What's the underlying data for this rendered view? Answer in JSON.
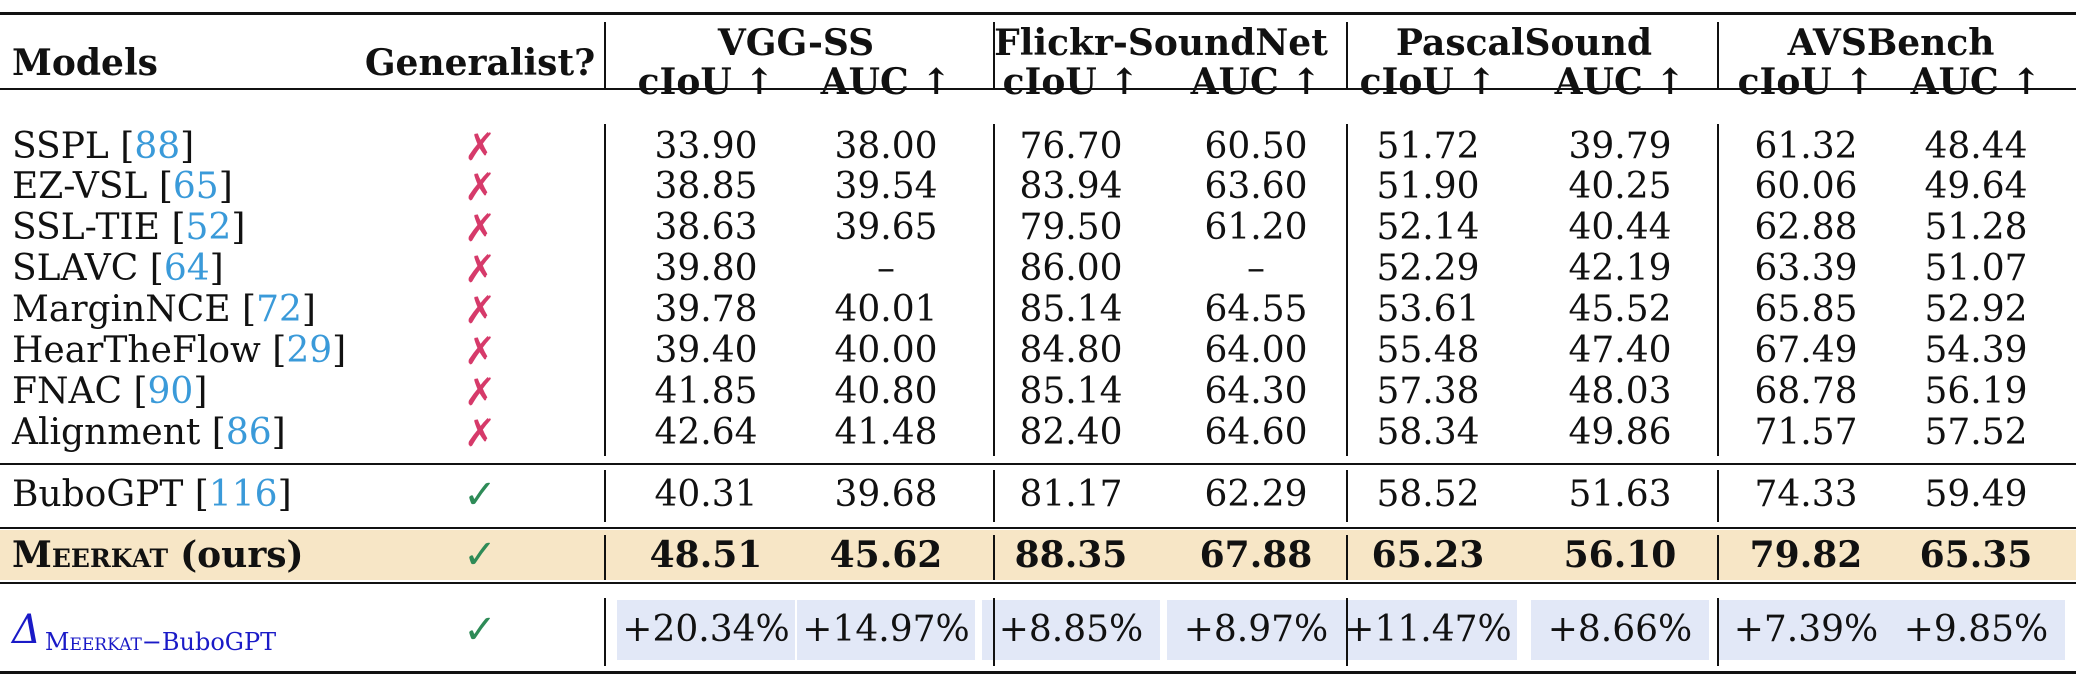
{
  "header": {
    "models": "Models",
    "generalist": "Generalist?",
    "groups": [
      "VGG-SS",
      "Flickr-SoundNet",
      "PascalSound",
      "AVSBench"
    ],
    "metrics": [
      "cIoU ↑",
      "AUC ↑",
      "cIoU ↑",
      "AUC ↑",
      "cIoU ↑",
      "AUC ↑",
      "cIoU ↑",
      "AUC ↑"
    ]
  },
  "specialists": [
    {
      "name": "SSPL",
      "ref": "88",
      "generalist": "✗",
      "values": [
        "33.90",
        "38.00",
        "76.70",
        "60.50",
        "51.72",
        "39.79",
        "61.32",
        "48.44"
      ]
    },
    {
      "name": "EZ-VSL",
      "ref": "65",
      "generalist": "✗",
      "values": [
        "38.85",
        "39.54",
        "83.94",
        "63.60",
        "51.90",
        "40.25",
        "60.06",
        "49.64"
      ]
    },
    {
      "name": "SSL-TIE",
      "ref": "52",
      "generalist": "✗",
      "values": [
        "38.63",
        "39.65",
        "79.50",
        "61.20",
        "52.14",
        "40.44",
        "62.88",
        "51.28"
      ]
    },
    {
      "name": "SLAVC",
      "ref": "64",
      "generalist": "✗",
      "values": [
        "39.80",
        "–",
        "86.00",
        "–",
        "52.29",
        "42.19",
        "63.39",
        "51.07"
      ]
    },
    {
      "name": "MarginNCE",
      "ref": "72",
      "generalist": "✗",
      "values": [
        "39.78",
        "40.01",
        "85.14",
        "64.55",
        "53.61",
        "45.52",
        "65.85",
        "52.92"
      ]
    },
    {
      "name": "HearTheFlow",
      "ref": "29",
      "generalist": "✗",
      "values": [
        "39.40",
        "40.00",
        "84.80",
        "64.00",
        "55.48",
        "47.40",
        "67.49",
        "54.39"
      ]
    },
    {
      "name": "FNAC",
      "ref": "90",
      "generalist": "✗",
      "values": [
        "41.85",
        "40.80",
        "85.14",
        "64.30",
        "57.38",
        "48.03",
        "68.78",
        "56.19"
      ]
    },
    {
      "name": "Alignment",
      "ref": "86",
      "generalist": "✗",
      "values": [
        "42.64",
        "41.48",
        "82.40",
        "64.60",
        "58.34",
        "49.86",
        "71.57",
        "57.52"
      ]
    }
  ],
  "bubo": {
    "name": "BuboGPT",
    "ref": "116",
    "generalist": "✓",
    "values": [
      "40.31",
      "39.68",
      "81.17",
      "62.29",
      "58.52",
      "51.63",
      "74.33",
      "59.49"
    ]
  },
  "meerkat": {
    "name": "Meerkat",
    "suffix": "(ours)",
    "generalist": "✓",
    "values": [
      "48.51",
      "45.62",
      "88.35",
      "67.88",
      "65.23",
      "56.10",
      "79.82",
      "65.35"
    ]
  },
  "delta": {
    "symbol": "Δ",
    "subscript_a": "Meerkat",
    "subscript_sep": "−",
    "subscript_b": "BuboGPT",
    "generalist": "✓",
    "values": [
      "+20.34%",
      "+14.97%",
      "+8.85%",
      "+8.97%",
      "+11.47%",
      "+8.66%",
      "+7.39%",
      "+9.85%"
    ]
  },
  "colors": {
    "cross": "#d63a6a",
    "check": "#2e8b57",
    "ref": "#3a9ad9",
    "highlight_row": "#f7e6c6",
    "delta_box": "#e2e8f7",
    "delta_label": "#1a1ac7"
  }
}
